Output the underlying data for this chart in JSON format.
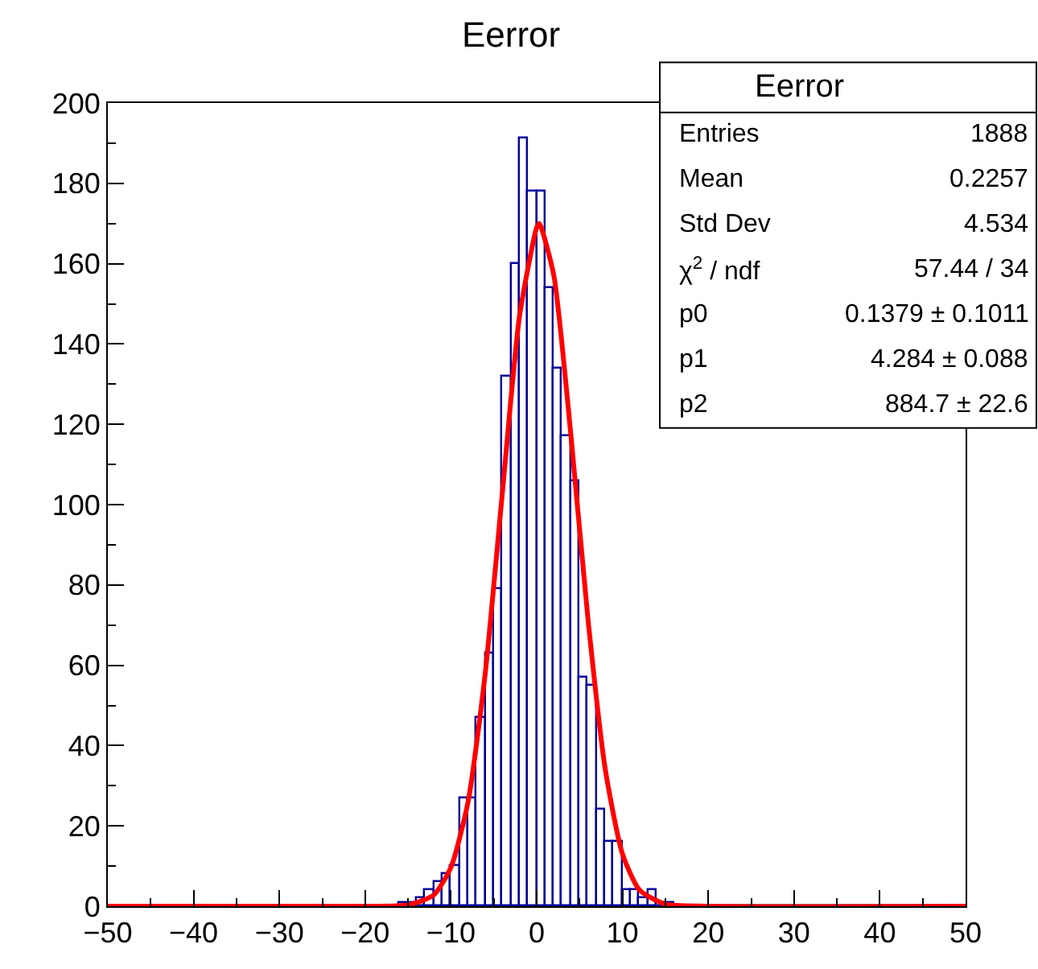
{
  "chart_data": {
    "type": "histogram",
    "title": "Eerror",
    "bins": [
      -50,
      -49,
      -48,
      -47,
      -46,
      -45,
      -44,
      -43,
      -42,
      -41,
      -40,
      -39,
      -38,
      -37,
      -36,
      -35,
      -34,
      -33,
      -32,
      -31,
      -30,
      -29,
      -28,
      -27,
      -26,
      -25,
      -24,
      -23,
      -22,
      -21,
      -20,
      -19,
      -18,
      -17,
      -16,
      -15,
      -14,
      -13,
      -12,
      -11,
      -10,
      -9,
      -8,
      -7,
      -6,
      -5,
      -4,
      -3,
      -2,
      -1,
      0,
      1,
      2,
      3,
      4,
      5,
      6,
      7,
      8,
      9,
      10,
      11,
      12,
      13,
      14,
      15,
      16,
      17,
      18,
      19,
      20,
      21,
      22,
      23,
      24,
      25,
      26,
      27,
      28,
      29,
      30,
      31,
      32,
      33,
      34,
      35,
      36,
      37,
      38,
      39,
      40,
      41,
      42,
      43,
      44,
      45,
      46,
      47,
      48,
      49,
      50
    ],
    "series": [
      {
        "color": "#000099",
        "values": [
          0,
          0,
          0,
          0,
          0,
          0,
          0,
          0,
          0,
          0,
          0,
          0,
          0,
          0,
          0,
          0,
          0,
          0,
          0,
          0,
          0,
          0,
          0,
          0,
          0,
          0,
          0,
          0,
          0,
          0,
          0,
          0,
          0,
          0,
          1,
          1,
          2,
          4,
          6,
          8,
          10,
          27,
          27,
          47,
          63,
          79,
          132,
          160,
          191,
          178,
          178,
          154,
          134,
          117,
          106,
          57,
          55,
          24,
          16,
          16,
          4,
          4,
          2,
          4,
          1,
          1,
          0,
          0,
          0,
          0,
          0,
          0,
          0,
          0,
          0,
          0,
          0,
          0,
          0,
          0,
          0,
          0,
          0,
          0,
          0,
          0,
          0,
          0,
          0,
          0,
          0,
          0,
          0,
          0,
          0,
          0,
          0,
          0,
          0,
          0
        ]
      },
      {
        "type": "line",
        "color": "#ff0000",
        "x": [
          -50,
          -20,
          -15,
          -12,
          -10,
          -8,
          -6,
          -4,
          -2,
          0,
          0.3,
          2,
          4,
          6,
          8,
          10,
          12,
          15,
          20,
          50
        ],
        "values": [
          0,
          0,
          0.3,
          2.8,
          9.7,
          26,
          58,
          103,
          147,
          169,
          170,
          157,
          117,
          71,
          34,
          13,
          4,
          0.5,
          0,
          0
        ]
      }
    ],
    "xlim": [
      -50,
      50
    ],
    "xticks": [
      -50,
      -40,
      -30,
      -20,
      -10,
      0,
      10,
      20,
      30,
      40,
      50
    ],
    "ylim": [
      0,
      200
    ],
    "yticks": [
      0,
      20,
      40,
      60,
      80,
      100,
      120,
      140,
      160,
      180,
      200
    ],
    "annotations": [
      "Eerror",
      "Entries",
      "1888",
      "Mean",
      "0.2257",
      "Std Dev",
      "4.534",
      "χ$^{2}$ / ndf",
      "57.44 / 34",
      "p0",
      "0.1379 ± 0.1011",
      "p1",
      "4.284 ± 0.088",
      "p2",
      "884.7 ± 22.6"
    ]
  }
}
